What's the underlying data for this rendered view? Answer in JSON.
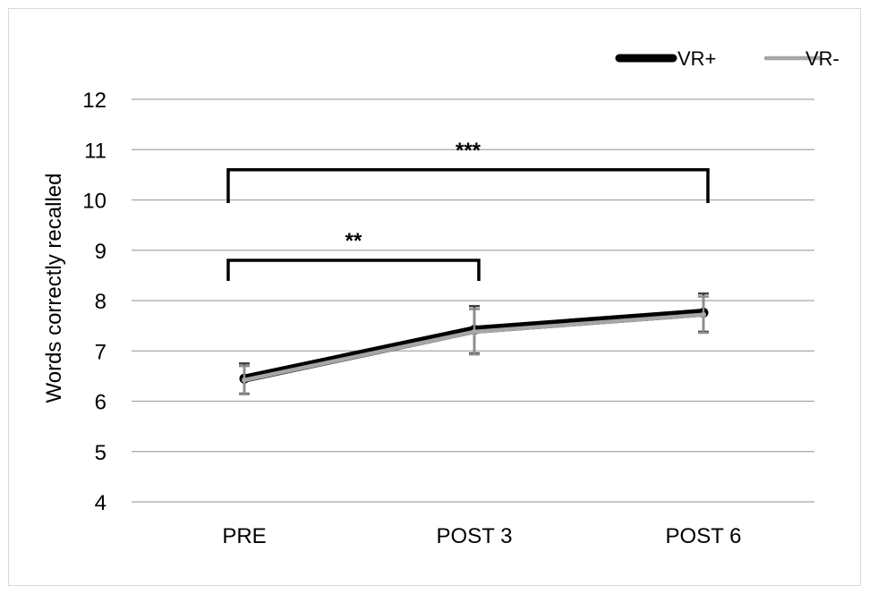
{
  "chart_data": {
    "type": "line",
    "title": "",
    "xlabel": "",
    "ylabel": "Words correctly recalled",
    "categories": [
      "PRE",
      "POST 3",
      "POST 6"
    ],
    "ylim": [
      4,
      12
    ],
    "yticks": [
      4,
      5,
      6,
      7,
      8,
      9,
      10,
      11,
      12
    ],
    "grid": true,
    "legend_position": "top-right",
    "series": [
      {
        "name": "VR+",
        "color": "#000000",
        "values": [
          6.45,
          7.42,
          7.76
        ],
        "error": [
          0.3,
          0.47,
          0.38
        ]
      },
      {
        "name": "VR-",
        "color": "#a6a6a6",
        "values": [
          6.42,
          7.38,
          7.72
        ],
        "error": [
          0.28,
          0.45,
          0.36
        ]
      }
    ],
    "annotations": [
      {
        "label": "**",
        "from": "PRE",
        "to": "POST 3",
        "y": 8.8
      },
      {
        "label": "***",
        "from": "PRE",
        "to": "POST 6",
        "y": 10.6
      }
    ]
  }
}
